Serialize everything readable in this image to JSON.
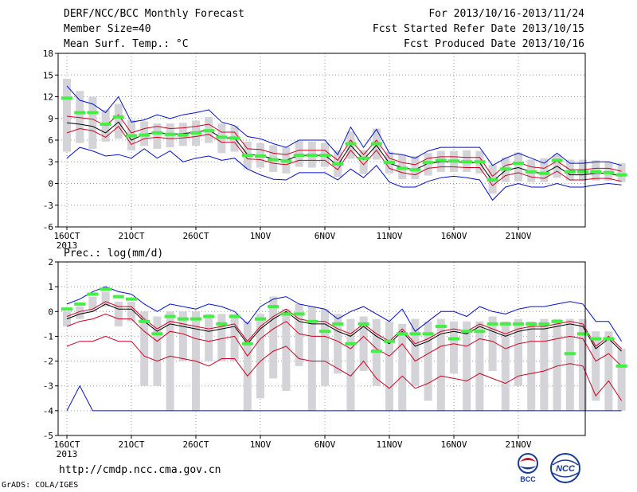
{
  "header": {
    "title": "DERF/NCC/BCC Monthly Forecast",
    "member_size": "Member Size=40",
    "variable1": "Mean Surf. Temp.: °C",
    "period": "For 2013/10/16-2013/11/24",
    "refer_date": "Fcst Started Refer Date 2013/10/15",
    "produced_date": "Fcst Produced Date 2013/10/16"
  },
  "footer": {
    "url": "http://cmdp.ncc.cma.gov.cn",
    "grads": "GrADS: COLA/IGES",
    "logo1_text": "BCC",
    "logo2_text": "NCC"
  },
  "colors": {
    "box": "#d3d3d8",
    "median": "#44ee44",
    "mean": "#000000",
    "inner_band": "#d00020",
    "outer_band": "#0010d0",
    "grid": "#999999"
  },
  "chart_data": [
    {
      "type": "box",
      "ylabel": "Mean Surf. Temp.: °C",
      "ylim": [
        -6,
        18
      ],
      "yticks": [
        "18",
        "15",
        "12",
        "9",
        "6",
        "3",
        "0",
        "-3",
        "-6"
      ],
      "xticks": [
        "16OCT",
        "21OCT",
        "26OCT",
        "1NOV",
        "6NOV",
        "11NOV",
        "16NOV",
        "21NOV"
      ],
      "xtick_sub": "2013",
      "grid": "dotted",
      "series": {
        "mean": [
          8.4,
          8.2,
          7.9,
          7.0,
          8.5,
          6.0,
          6.8,
          7.1,
          6.8,
          6.9,
          7.1,
          7.4,
          6.3,
          6.3,
          4.0,
          3.9,
          3.4,
          3.2,
          3.9,
          3.9,
          3.9,
          2.5,
          5.3,
          3.3,
          5.3,
          2.8,
          2.2,
          1.9,
          2.8,
          3.0,
          3.0,
          2.9,
          2.9,
          0.3,
          1.8,
          2.2,
          1.6,
          1.4,
          2.4,
          1.2,
          1.2,
          1.4,
          1.4,
          1.0
        ],
        "inner_upper": [
          9.3,
          9.1,
          8.9,
          8.0,
          9.5,
          7.0,
          7.6,
          7.9,
          7.6,
          7.7,
          7.9,
          8.2,
          7.1,
          7.1,
          4.8,
          4.7,
          4.2,
          4.0,
          4.6,
          4.6,
          4.6,
          3.2,
          6.0,
          4.0,
          6.0,
          3.5,
          2.9,
          2.6,
          3.5,
          3.7,
          3.7,
          3.6,
          3.6,
          1.0,
          2.5,
          2.9,
          2.3,
          2.1,
          3.1,
          1.9,
          1.9,
          2.1,
          2.1,
          1.7
        ],
        "inner_lower": [
          7.0,
          7.6,
          7.3,
          6.4,
          7.9,
          5.4,
          6.2,
          6.4,
          6.2,
          6.3,
          6.5,
          6.8,
          5.7,
          5.7,
          3.4,
          3.3,
          2.8,
          2.6,
          3.2,
          3.2,
          3.2,
          1.9,
          4.6,
          2.6,
          4.6,
          2.1,
          1.5,
          1.2,
          2.1,
          2.3,
          2.3,
          2.2,
          2.2,
          -0.3,
          1.1,
          1.5,
          0.9,
          0.7,
          1.7,
          0.5,
          0.5,
          0.7,
          0.7,
          0.3
        ],
        "outer_upper": [
          13.5,
          11.5,
          11.0,
          9.8,
          12.0,
          8.5,
          8.8,
          9.5,
          9.0,
          9.5,
          9.8,
          10.2,
          8.5,
          8.0,
          6.5,
          6.2,
          5.5,
          5.0,
          6.0,
          6.0,
          6.0,
          4.0,
          7.8,
          5.0,
          7.5,
          4.2,
          4.0,
          3.5,
          4.5,
          5.0,
          5.0,
          5.0,
          5.0,
          2.5,
          3.5,
          4.2,
          3.5,
          2.8,
          4.2,
          2.8,
          2.8,
          3.0,
          3.0,
          2.5
        ],
        "outer_lower": [
          3.5,
          5.0,
          4.5,
          3.8,
          4.0,
          3.5,
          4.8,
          3.5,
          4.5,
          3.0,
          3.5,
          3.8,
          3.2,
          3.5,
          2.0,
          1.2,
          0.6,
          0.5,
          1.5,
          1.5,
          1.5,
          0.5,
          2.0,
          0.8,
          2.5,
          0.2,
          -0.5,
          -0.5,
          0.3,
          0.8,
          1.0,
          0.8,
          0.5,
          -2.3,
          -0.5,
          0.0,
          -0.5,
          -0.5,
          0.0,
          -0.5,
          -0.5,
          -0.2,
          0.0,
          -0.2
        ],
        "median": [
          11.8,
          9.8,
          9.8,
          8.2,
          9.2,
          6.6,
          6.7,
          7.0,
          6.8,
          6.7,
          7.0,
          7.3,
          6.4,
          6.3,
          3.9,
          3.8,
          3.3,
          3.1,
          3.9,
          3.9,
          3.9,
          2.7,
          5.5,
          3.5,
          5.5,
          2.9,
          2.1,
          1.9,
          2.9,
          3.2,
          3.1,
          3.0,
          3.0,
          0.5,
          2.0,
          2.8,
          1.6,
          1.4,
          3.2,
          1.6,
          1.6,
          1.6,
          1.5,
          1.2
        ],
        "box_top": [
          14.5,
          12.8,
          12.0,
          10.2,
          11.0,
          8.8,
          8.6,
          8.3,
          8.3,
          8.4,
          8.7,
          9.2,
          8.3,
          8.0,
          5.8,
          5.6,
          5.3,
          5.0,
          5.9,
          5.8,
          5.6,
          4.6,
          7.2,
          4.6,
          7.6,
          4.4,
          4.0,
          3.8,
          4.2,
          4.5,
          4.5,
          4.6,
          4.5,
          2.6,
          3.6,
          4.3,
          3.3,
          3.5,
          4.0,
          3.3,
          3.3,
          3.2,
          3.0,
          2.8
        ],
        "box_bottom": [
          4.4,
          5.6,
          4.8,
          5.8,
          6.2,
          4.6,
          5.2,
          4.8,
          5.0,
          5.2,
          5.2,
          5.6,
          4.2,
          4.4,
          2.0,
          2.2,
          1.6,
          1.4,
          2.3,
          2.2,
          2.3,
          0.9,
          3.4,
          1.3,
          3.3,
          1.4,
          0.6,
          0.6,
          1.1,
          1.6,
          1.6,
          1.6,
          1.4,
          -1.4,
          0.2,
          0.3,
          0.2,
          0.2,
          0.8,
          0.4,
          0.4,
          0.4,
          0.4,
          0.2
        ]
      }
    },
    {
      "type": "box",
      "ylabel": "Prec.: log(mm/d)",
      "ylim": [
        -5,
        2
      ],
      "yticks": [
        "2",
        "1",
        "0",
        "-1",
        "-2",
        "-3",
        "-4",
        "-5"
      ],
      "xticks": [
        "16OCT",
        "21OCT",
        "26OCT",
        "1NOV",
        "6NOV",
        "11NOV",
        "16NOV",
        "21NOV"
      ],
      "xtick_sub": "2013",
      "grid": "dotted",
      "series": {
        "mean": [
          -0.3,
          -0.1,
          0.0,
          0.3,
          0.1,
          0.1,
          -0.4,
          -0.8,
          -0.5,
          -0.6,
          -0.7,
          -0.8,
          -0.7,
          -0.6,
          -1.3,
          -0.7,
          -0.3,
          0.0,
          -0.4,
          -0.5,
          -0.5,
          -0.8,
          -1.0,
          -0.6,
          -1.0,
          -1.3,
          -0.8,
          -1.4,
          -1.2,
          -0.9,
          -0.8,
          -0.9,
          -0.6,
          -0.8,
          -1.0,
          -0.8,
          -0.7,
          -0.7,
          -0.6,
          -0.5,
          -0.6,
          -1.5,
          -1.1,
          -1.6
        ],
        "inner_upper": [
          -0.2,
          0.0,
          0.1,
          0.4,
          0.2,
          0.2,
          -0.3,
          -0.7,
          -0.4,
          -0.5,
          -0.6,
          -0.7,
          -0.6,
          -0.5,
          -1.2,
          -0.6,
          -0.2,
          0.1,
          -0.3,
          -0.4,
          -0.4,
          -0.7,
          -0.9,
          -0.5,
          -0.9,
          -1.2,
          -0.7,
          -1.3,
          -1.1,
          -0.8,
          -0.7,
          -0.8,
          -0.5,
          -0.7,
          -0.9,
          -0.7,
          -0.6,
          -0.6,
          -0.5,
          -0.4,
          -0.5,
          -1.4,
          -1.0,
          -1.5
        ],
        "inner_lower": [
          -0.6,
          -0.4,
          -0.3,
          -0.1,
          -0.3,
          -0.3,
          -0.8,
          -1.2,
          -0.8,
          -0.9,
          -1.1,
          -1.2,
          -1.1,
          -1.0,
          -1.8,
          -1.1,
          -0.7,
          -0.4,
          -0.9,
          -1.0,
          -1.0,
          -1.2,
          -1.5,
          -1.0,
          -1.5,
          -1.8,
          -1.3,
          -2.0,
          -1.7,
          -1.4,
          -1.3,
          -1.4,
          -1.1,
          -1.2,
          -1.5,
          -1.3,
          -1.2,
          -1.2,
          -1.1,
          -1.0,
          -1.1,
          -2.0,
          -1.7,
          -2.2
        ],
        "outer_upper": [
          0.3,
          0.5,
          0.8,
          1.0,
          0.8,
          0.7,
          0.3,
          0.0,
          0.3,
          0.2,
          0.1,
          0.3,
          0.2,
          0.0,
          -0.5,
          0.2,
          0.5,
          0.6,
          0.3,
          0.2,
          0.1,
          -0.3,
          0.0,
          0.2,
          -0.1,
          -0.4,
          0.1,
          -0.8,
          -0.4,
          0.0,
          0.0,
          -0.2,
          0.2,
          0.0,
          -0.1,
          0.1,
          0.2,
          0.2,
          0.3,
          0.4,
          0.3,
          -0.4,
          -0.4,
          -1.2
        ],
        "outer_lower": [
          -4.0,
          -3.0,
          -4.0,
          -4.0,
          -4.0,
          -4.0,
          -4.0,
          -4.0,
          -4.0,
          -4.0,
          -4.0,
          -4.0,
          -4.0,
          -4.0,
          -4.0,
          -4.0,
          -4.0,
          -4.0,
          -4.0,
          -4.0,
          -4.0,
          -4.0,
          -4.0,
          -4.0,
          -4.0,
          -4.0,
          -4.0,
          -4.0,
          -4.0,
          -4.0,
          -4.0,
          -4.0,
          -4.0,
          -4.0,
          -4.0,
          -4.0,
          -4.0,
          -4.0,
          -4.0,
          -4.0,
          -4.0,
          -4.0,
          -4.0,
          -4.0
        ],
        "lowest_red": [
          -1.4,
          -1.2,
          -1.2,
          -1.0,
          -1.2,
          -1.2,
          -1.8,
          -2.0,
          -1.8,
          -1.9,
          -2.0,
          -2.2,
          -1.9,
          -1.9,
          -2.6,
          -2.0,
          -1.6,
          -1.4,
          -1.9,
          -2.0,
          -2.0,
          -2.3,
          -2.6,
          -2.0,
          -2.7,
          -3.1,
          -2.6,
          -3.1,
          -2.9,
          -2.6,
          -2.7,
          -2.8,
          -2.5,
          -2.7,
          -2.9,
          -2.6,
          -2.5,
          -2.4,
          -2.2,
          -2.1,
          -2.2,
          -3.4,
          -2.8,
          -3.6
        ],
        "median": [
          0.1,
          0.3,
          0.7,
          0.9,
          0.6,
          0.5,
          -0.4,
          -0.9,
          -0.2,
          -0.3,
          -0.3,
          -0.2,
          -0.5,
          -0.2,
          -1.3,
          -0.3,
          0.2,
          -0.1,
          -0.1,
          -0.4,
          -0.8,
          -0.5,
          -1.3,
          -0.5,
          -1.6,
          -1.2,
          -0.9,
          -0.9,
          -0.9,
          -0.6,
          -1.1,
          -0.8,
          -0.8,
          -0.5,
          -0.5,
          -0.5,
          -0.5,
          -0.5,
          -0.4,
          -1.7,
          -0.9,
          -1.1,
          -1.1,
          -2.2
        ],
        "box_top": [
          0.0,
          0.2,
          0.6,
          0.8,
          0.4,
          0.4,
          0.0,
          -0.2,
          0.0,
          0.0,
          0.0,
          -0.1,
          -0.1,
          -0.1,
          -0.4,
          -0.1,
          0.6,
          0.1,
          0.3,
          0.2,
          0.1,
          -0.1,
          -0.3,
          -0.2,
          -0.3,
          -0.4,
          -0.5,
          -0.3,
          -0.4,
          -0.3,
          -0.4,
          -0.4,
          -0.4,
          -0.2,
          -0.4,
          -0.3,
          -0.4,
          -0.3,
          -0.3,
          -0.3,
          -0.3,
          -0.8,
          -0.8,
          -1.5
        ],
        "box_bottom": [
          -0.6,
          -0.3,
          0.0,
          0.2,
          -0.6,
          -0.4,
          -3.0,
          -3.0,
          -4.0,
          -2.0,
          -4.0,
          -2.0,
          -2.0,
          -2.0,
          -4.0,
          -3.5,
          -2.7,
          -3.2,
          -2.2,
          -4.0,
          -3.0,
          -2.5,
          -4.0,
          -2.4,
          -3.0,
          -4.0,
          -4.0,
          -3.0,
          -3.6,
          -4.0,
          -2.5,
          -4.0,
          -4.0,
          -2.4,
          -4.0,
          -3.0,
          -4.0,
          -4.0,
          -4.0,
          -4.0,
          -4.0,
          -3.6,
          -4.0,
          -4.0
        ]
      }
    }
  ]
}
